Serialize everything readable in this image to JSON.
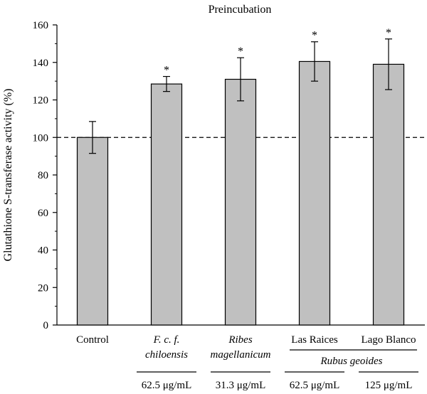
{
  "chart_data": {
    "type": "bar",
    "title": "Preincubation",
    "ylabel": "Glutathione S-transferase activity (%)",
    "xlabel": "",
    "ylim": [
      0,
      160
    ],
    "yticks": [
      0,
      20,
      40,
      60,
      80,
      100,
      120,
      140,
      160
    ],
    "ytick_labels": [
      "0",
      "20",
      "40",
      "60",
      "80",
      "100",
      "120",
      "140",
      "160"
    ],
    "reference_line": 100,
    "grid": false,
    "bar_color": "#c0c0c0",
    "categories": [
      {
        "lines": [
          {
            "text": "Control",
            "italic": false
          }
        ]
      },
      {
        "lines": [
          {
            "text": "F. c. f.",
            "italic": true
          },
          {
            "text": "chiloensis",
            "italic": true
          }
        ]
      },
      {
        "lines": [
          {
            "text": "Ribes",
            "italic": true
          },
          {
            "text": "magellanicum",
            "italic": true
          }
        ]
      },
      {
        "lines": [
          {
            "text": "Las Raices",
            "italic": false
          }
        ]
      },
      {
        "lines": [
          {
            "text": "Lago Blanco",
            "italic": false
          }
        ]
      }
    ],
    "values": [
      100,
      128.5,
      131,
      140.5,
      139
    ],
    "errors": [
      8.5,
      4,
      11.5,
      10.5,
      13.5
    ],
    "significance": [
      "",
      "*",
      "*",
      "*",
      "*"
    ],
    "group_label": "Rubus geoides",
    "concentrations": [
      "",
      "62.5 μg/mL",
      "31.3 μg/mL",
      "62.5 μg/mL",
      "125 μg/mL"
    ]
  }
}
